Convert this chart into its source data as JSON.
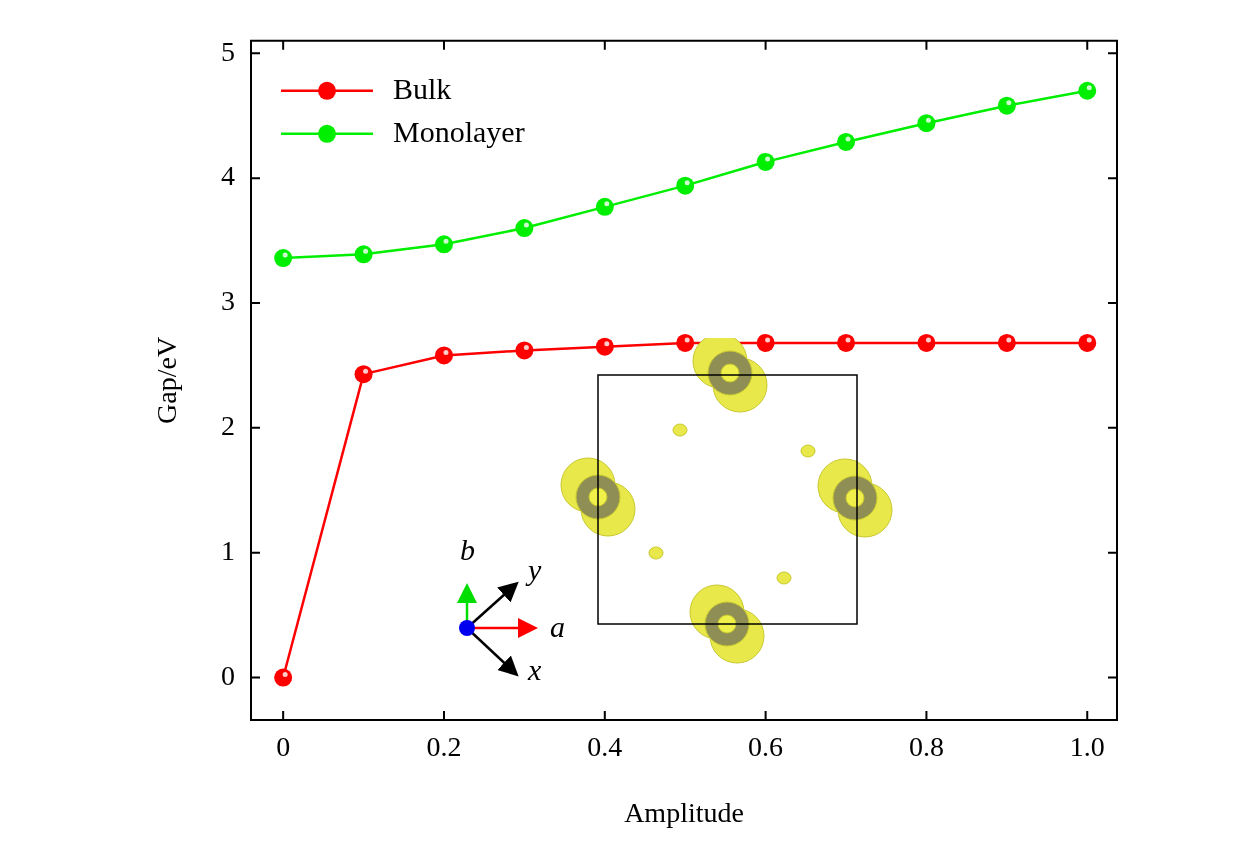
{
  "chart_data": {
    "type": "line",
    "xlabel": "Amplitude",
    "ylabel": "Gap/eV",
    "x": [
      0,
      0.1,
      0.2,
      0.3,
      0.4,
      0.5,
      0.6,
      0.7,
      0.8,
      0.9,
      1.0
    ],
    "series": [
      {
        "name": "Bulk",
        "color": "#ff0000",
        "values": [
          0,
          2.43,
          2.58,
          2.62,
          2.65,
          2.68,
          2.68,
          2.68,
          2.68,
          2.68,
          2.68
        ]
      },
      {
        "name": "Monolayer",
        "color": "#00ee00",
        "values": [
          3.36,
          3.39,
          3.47,
          3.6,
          3.77,
          3.94,
          4.13,
          4.29,
          4.44,
          4.58,
          4.7
        ]
      }
    ],
    "xlim": [
      -0.04,
      1.037
    ],
    "xticks": [
      0,
      0.2,
      0.4,
      0.6,
      0.8,
      {
        "value": 1.0,
        "label": "1.0"
      }
    ],
    "ylim": [
      -0.34,
      5.1
    ],
    "yticks": [
      0,
      1,
      2,
      3,
      4,
      5
    ],
    "grid": false,
    "legend": "top left",
    "marker": "circle",
    "line_style": "solid",
    "annotations": [
      "b",
      "y",
      "a",
      "x"
    ]
  }
}
